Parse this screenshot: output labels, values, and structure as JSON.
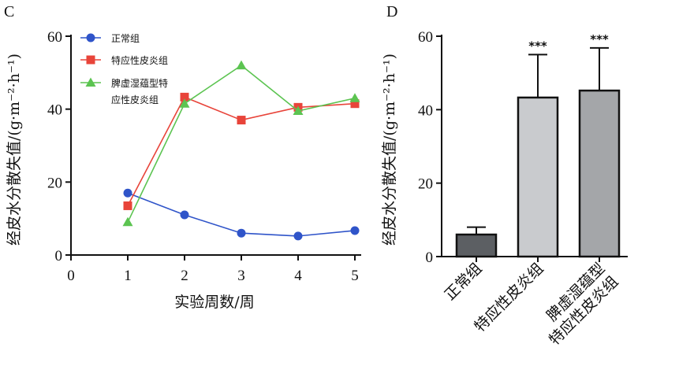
{
  "chart_data": [
    {
      "panel": "C",
      "type": "line",
      "xlabel": "实验周数/周",
      "ylabel": "经皮水分散失值/(g·m⁻²·h⁻¹)",
      "xlim": [
        0,
        5
      ],
      "ylim": [
        0,
        60
      ],
      "xticks": [
        0,
        1,
        2,
        3,
        4,
        5
      ],
      "yticks": [
        0,
        20,
        40,
        60
      ],
      "grid": false,
      "legend_position": "top-left",
      "series": [
        {
          "name": "正常组",
          "color": "#2f54c9",
          "marker": "circle",
          "x": [
            1,
            2,
            3,
            4,
            5
          ],
          "values": [
            17,
            11,
            6,
            5.2,
            6.7
          ]
        },
        {
          "name": "特应性皮炎组",
          "color": "#e8443a",
          "marker": "square",
          "x": [
            1,
            2,
            3,
            4,
            5
          ],
          "values": [
            13.5,
            43.3,
            37,
            40.5,
            41.5
          ]
        },
        {
          "name": "脾虚湿蕴型特应性皮炎组",
          "legend_lines": [
            "脾虚湿蕴型特",
            "应性皮炎组"
          ],
          "color": "#5cc451",
          "marker": "triangle",
          "x": [
            1,
            2,
            3,
            4,
            5
          ],
          "values": [
            9,
            41.5,
            52,
            39.5,
            43
          ]
        }
      ]
    },
    {
      "panel": "D",
      "type": "bar",
      "ylabel": "经皮水分散失值/(g·m⁻²·h⁻¹)",
      "ylim": [
        0,
        60
      ],
      "yticks": [
        0,
        20,
        40,
        60
      ],
      "grid": false,
      "categories": [
        {
          "lines": [
            "正常组"
          ]
        },
        {
          "lines": [
            "特应性皮炎组"
          ]
        },
        {
          "lines": [
            "脾虚湿蕴型",
            "特应性皮炎组"
          ]
        }
      ],
      "values": [
        6,
        43.3,
        45.2
      ],
      "error_upper": [
        8,
        55,
        56.8
      ],
      "fills": [
        "#5c5f63",
        "#c9cbce",
        "#a4a6a9"
      ],
      "significance": [
        "",
        "***",
        "***"
      ]
    }
  ]
}
